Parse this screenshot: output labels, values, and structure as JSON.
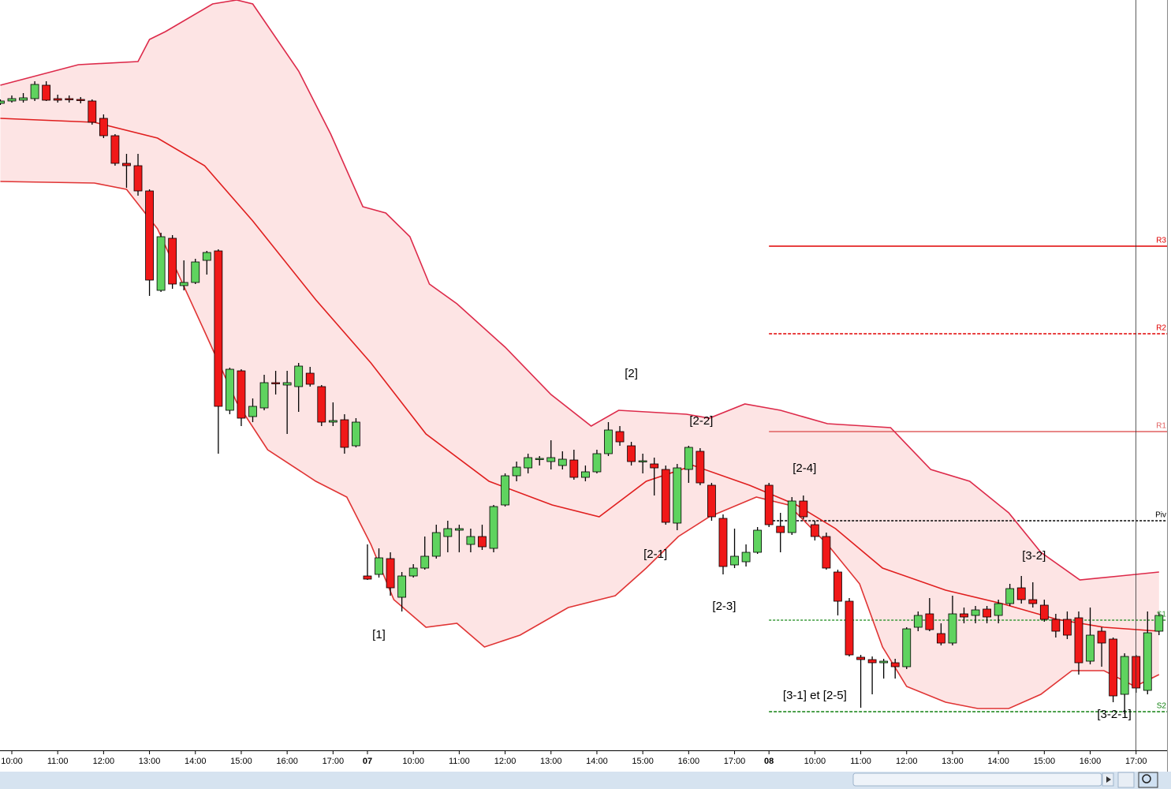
{
  "chart_data": {
    "type": "candlestick",
    "xlim": [
      -1.03,
      100.7
    ],
    "ylim": [
      50,
      1000
    ],
    "xticks": [
      {
        "value": 0,
        "label": "10:00"
      },
      {
        "value": 4,
        "label": "11:00"
      },
      {
        "value": 8,
        "label": "12:00"
      },
      {
        "value": 12,
        "label": "13:00"
      },
      {
        "value": 16,
        "label": "14:00"
      },
      {
        "value": 20,
        "label": "15:00"
      },
      {
        "value": 24,
        "label": "16:00"
      },
      {
        "value": 28,
        "label": "17:00"
      },
      {
        "value": 31,
        "label": "07"
      },
      {
        "value": 35,
        "label": "10:00"
      },
      {
        "value": 39,
        "label": "11:00"
      },
      {
        "value": 43,
        "label": "12:00"
      },
      {
        "value": 47,
        "label": "13:00"
      },
      {
        "value": 51,
        "label": "14:00"
      },
      {
        "value": 55,
        "label": "15:00"
      },
      {
        "value": 59,
        "label": "16:00"
      },
      {
        "value": 63,
        "label": "17:00"
      },
      {
        "value": 66,
        "label": "08"
      },
      {
        "value": 70,
        "label": "10:00"
      },
      {
        "value": 74,
        "label": "11:00"
      },
      {
        "value": 78,
        "label": "12:00"
      },
      {
        "value": 82,
        "label": "13:00"
      },
      {
        "value": 86,
        "label": "14:00"
      },
      {
        "value": 90,
        "label": "15:00"
      },
      {
        "value": 94,
        "label": "16:00"
      },
      {
        "value": 98,
        "label": "17:00"
      }
    ],
    "up_color": "#5fd35f",
    "down_color": "#f01818",
    "x": [
      -1,
      0,
      1,
      2,
      3,
      4,
      5,
      6,
      7,
      8,
      9,
      10,
      11,
      12,
      13,
      14,
      15,
      16,
      17,
      18,
      19,
      20,
      21,
      22,
      23,
      24,
      25,
      26,
      27,
      28,
      29,
      30,
      31,
      32,
      33,
      34,
      35,
      36,
      37,
      38,
      39,
      40,
      41,
      42,
      43,
      44,
      45,
      46,
      47,
      48,
      49,
      50,
      51,
      52,
      53,
      54,
      55,
      56,
      57,
      58,
      59,
      60,
      61,
      62,
      63,
      64,
      65,
      66,
      67,
      68,
      69,
      70,
      71,
      72,
      73,
      74,
      75,
      76,
      77,
      78,
      79,
      80,
      81,
      82,
      83,
      84,
      85,
      86,
      87,
      88,
      89,
      90,
      91,
      92,
      93,
      94,
      95,
      96,
      97,
      98,
      99,
      100
    ],
    "open": [
      869,
      872,
      873,
      875,
      892,
      875,
      875,
      874,
      872,
      850,
      828,
      793,
      790,
      758,
      632,
      698,
      638,
      642,
      670,
      682,
      480,
      530,
      472,
      483,
      515,
      512,
      510,
      527,
      510,
      465,
      468,
      435,
      270,
      272,
      292,
      243,
      270,
      280,
      295,
      320,
      328,
      310,
      320,
      305,
      360,
      397,
      407,
      418,
      415,
      410,
      417,
      395,
      402,
      425,
      453,
      435,
      415,
      412,
      405,
      337,
      405,
      428,
      385,
      343,
      284,
      288,
      300,
      385,
      333,
      325,
      365,
      335,
      320,
      275,
      238,
      167,
      164,
      160,
      160,
      155,
      205,
      222,
      197,
      185,
      222,
      220,
      228,
      220,
      235,
      255,
      240,
      233,
      215,
      215,
      217,
      162,
      200,
      190,
      120,
      168,
      125,
      200
    ],
    "high": [
      874,
      879,
      882,
      897,
      897,
      880,
      879,
      877,
      874,
      855,
      830,
      805,
      805,
      760,
      705,
      702,
      670,
      672,
      682,
      684,
      534,
      532,
      495,
      525,
      530,
      530,
      540,
      535,
      512,
      490,
      475,
      470,
      310,
      305,
      300,
      275,
      285,
      320,
      335,
      340,
      335,
      330,
      335,
      360,
      400,
      415,
      425,
      422,
      442,
      428,
      430,
      410,
      430,
      465,
      460,
      440,
      425,
      420,
      410,
      412,
      435,
      432,
      388,
      348,
      330,
      310,
      332,
      388,
      350,
      370,
      372,
      340,
      325,
      278,
      242,
      170,
      168,
      165,
      165,
      205,
      225,
      242,
      210,
      245,
      230,
      232,
      232,
      240,
      260,
      270,
      262,
      240,
      222,
      225,
      225,
      230,
      205,
      192,
      172,
      170,
      225,
      224
    ],
    "low": [
      867,
      870,
      870,
      872,
      872,
      870,
      870,
      869,
      842,
      825,
      790,
      762,
      752,
      625,
      630,
      634,
      632,
      640,
      652,
      425,
      475,
      460,
      465,
      480,
      500,
      450,
      478,
      510,
      460,
      460,
      425,
      433,
      265,
      268,
      245,
      225,
      268,
      278,
      292,
      300,
      300,
      300,
      303,
      300,
      358,
      390,
      400,
      410,
      405,
      405,
      392,
      390,
      400,
      422,
      435,
      410,
      400,
      372,
      335,
      328,
      388,
      385,
      340,
      272,
      280,
      282,
      298,
      332,
      300,
      322,
      342,
      315,
      278,
      220,
      168,
      103,
      120,
      140,
      140,
      152,
      200,
      200,
      182,
      182,
      210,
      210,
      210,
      210,
      232,
      235,
      230,
      212,
      192,
      190,
      145,
      158,
      155,
      110,
      95,
      122,
      120,
      195
    ],
    "close": [
      872,
      875,
      876,
      893,
      873,
      873,
      874,
      873,
      845,
      828,
      793,
      790,
      758,
      645,
      700,
      640,
      642,
      668,
      680,
      485,
      532,
      470,
      485,
      515,
      514,
      515,
      536,
      513,
      465,
      467,
      433,
      465,
      266,
      293,
      255,
      270,
      280,
      295,
      325,
      330,
      330,
      320,
      307,
      358,
      397,
      408,
      420,
      419,
      420,
      418,
      395,
      402,
      425,
      455,
      440,
      415,
      416,
      407,
      338,
      407,
      433,
      388,
      345,
      282,
      295,
      300,
      328,
      335,
      325,
      365,
      345,
      320,
      280,
      238,
      170,
      164,
      160,
      162,
      155,
      203,
      220,
      202,
      185,
      222,
      218,
      227,
      218,
      235,
      254,
      240,
      235,
      215,
      200,
      195,
      160,
      195,
      185,
      118,
      168,
      128,
      198,
      220
    ],
    "bands": {
      "color": "#fde4e4",
      "upper": {
        "color": "#dd2a4a",
        "x": [
          -1,
          5.8,
          11,
          12,
          13.4,
          17.5,
          19.6,
          21,
          25,
          27.8,
          30.6,
          32.6,
          34.7,
          36.4,
          38.8,
          43,
          47,
          50.5,
          52.9,
          58.8,
          60.8,
          63.9,
          67,
          71.1,
          76.6,
          80.1,
          83.5,
          86.9,
          89.7,
          93.1,
          96.6,
          100
        ],
        "values": [
          892,
          918,
          922,
          950,
          960,
          995,
          1000,
          995,
          910,
          830,
          738,
          730,
          700,
          640,
          615,
          560,
          500,
          460,
          480,
          475,
          470,
          488,
          480,
          463,
          458,
          405,
          390,
          350,
          300,
          265,
          270,
          275
        ]
      },
      "lower": {
        "color": "#e03434",
        "x": [
          -1,
          7.2,
          10,
          12.7,
          16.8,
          19.6,
          22.3,
          26.5,
          29.2,
          31.3,
          33.3,
          36.1,
          38.8,
          41.2,
          44.3,
          48.5,
          52.6,
          55.3,
          58.1,
          60.8,
          64.9,
          67.7,
          71.1,
          73.9,
          75.9,
          78,
          81.4,
          84.2,
          86.9,
          89.7,
          92.4,
          95.2,
          97.9,
          100
        ],
        "values": [
          770,
          768,
          760,
          710,
          580,
          490,
          430,
          390,
          370,
          310,
          240,
          205,
          210,
          180,
          195,
          230,
          245,
          280,
          320,
          345,
          370,
          360,
          310,
          260,
          180,
          130,
          110,
          102,
          102,
          120,
          150,
          150,
          130,
          145
        ]
      }
    },
    "lines": [
      {
        "color": "#e01e1e",
        "x": [
          -1,
          7.2,
          12.7,
          16.8,
          21,
          26.5,
          31.3,
          36.1,
          41.6,
          47.1,
          51.2,
          55.3,
          59.4,
          64.3,
          68.4,
          71.8,
          75.9,
          81.4,
          86.3,
          91.1,
          95.2,
          100
        ],
        "values": [
          850,
          845,
          825,
          790,
          720,
          620,
          540,
          450,
          390,
          360,
          345,
          390,
          410,
          385,
          360,
          330,
          280,
          252,
          235,
          215,
          205,
          200
        ]
      }
    ],
    "levels": [
      {
        "label": "R3",
        "value": 688,
        "color": "#e00000",
        "dash": "none",
        "from": 66
      },
      {
        "label": "R2",
        "value": 577,
        "color": "#e00000",
        "dash": "4 2",
        "from": 66
      },
      {
        "label": "R1",
        "value": 453,
        "color": "#e06060",
        "dash": "none",
        "from": 66
      },
      {
        "label": "Piv",
        "value": 340,
        "color": "#000000",
        "dash": "3 2",
        "from": 66
      },
      {
        "label": "S1",
        "value": 214,
        "color": "#3a9a3a",
        "dash": "3 2",
        "from": 66
      },
      {
        "label": "S2",
        "value": 98,
        "color": "#108010",
        "dash": "4 2",
        "from": 66
      }
    ],
    "annotations": [
      {
        "text": "[1]",
        "x": 32,
        "y": 195
      },
      {
        "text": "[2]",
        "x": 54,
        "y": 526
      },
      {
        "text": "[2-1]",
        "x": 56.1,
        "y": 297
      },
      {
        "text": "[2-2]",
        "x": 60.1,
        "y": 466
      },
      {
        "text": "[2-3]",
        "x": 62.1,
        "y": 231
      },
      {
        "text": "[2-4]",
        "x": 69.1,
        "y": 406
      },
      {
        "text": "[3-1] et [2-5]",
        "x": 70,
        "y": 118
      },
      {
        "text": "[3-2]",
        "x": 89.1,
        "y": 295
      },
      {
        "text": "[3-2-1]",
        "x": 96.1,
        "y": 94
      }
    ]
  }
}
